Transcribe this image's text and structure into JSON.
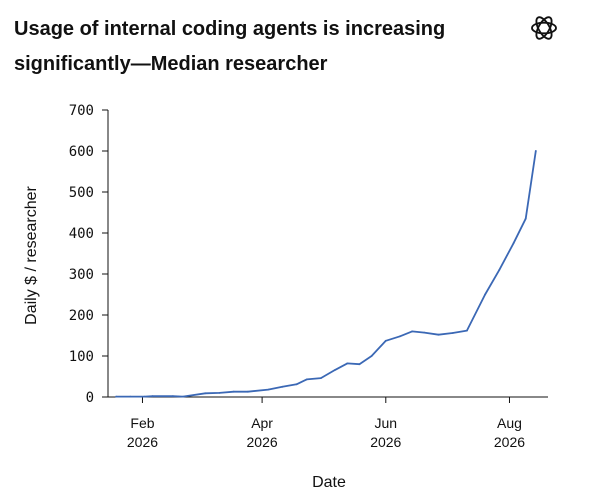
{
  "header": {
    "title": "Usage of internal coding agents is increasing significantly—Median researcher",
    "logo_icon": "openai-logo-icon"
  },
  "chart_data": {
    "type": "line",
    "title": "Usage of internal coding agents is increasing significantly—Median researcher",
    "xlabel": "Date",
    "ylabel": "Daily $ / researcher",
    "ylim": [
      0,
      700
    ],
    "xlim": [
      "2026-01-15",
      "2026-08-20"
    ],
    "yticks": [
      0,
      100,
      200,
      300,
      400,
      500,
      600,
      700
    ],
    "xticks": [
      {
        "date": "2026-02-01",
        "month": "Feb",
        "year": "2026"
      },
      {
        "date": "2026-04-01",
        "month": "Apr",
        "year": "2026"
      },
      {
        "date": "2026-06-01",
        "month": "Jun",
        "year": "2026"
      },
      {
        "date": "2026-08-01",
        "month": "Aug",
        "year": "2026"
      }
    ],
    "line_color": "#3b68b5",
    "grid": false,
    "series": [
      {
        "name": "",
        "x": [
          "2026-01-19",
          "2026-01-26",
          "2026-02-02",
          "2026-02-06",
          "2026-02-16",
          "2026-02-21",
          "2026-03-04",
          "2026-03-11",
          "2026-03-18",
          "2026-03-25",
          "2026-04-04",
          "2026-04-11",
          "2026-04-18",
          "2026-04-23",
          "2026-04-30",
          "2026-05-07",
          "2026-05-13",
          "2026-05-19",
          "2026-05-25",
          "2026-06-01",
          "2026-06-08",
          "2026-06-14",
          "2026-06-20",
          "2026-06-27",
          "2026-07-04",
          "2026-07-11",
          "2026-07-20",
          "2026-07-27",
          "2026-08-03",
          "2026-08-09",
          "2026-08-14"
        ],
        "values": [
          1,
          1,
          1,
          2,
          2,
          1,
          9,
          10,
          13,
          13,
          18,
          25,
          31,
          43,
          46,
          66,
          82,
          80,
          100,
          137,
          148,
          160,
          157,
          152,
          156,
          162,
          250,
          310,
          375,
          435,
          600
        ]
      }
    ]
  }
}
